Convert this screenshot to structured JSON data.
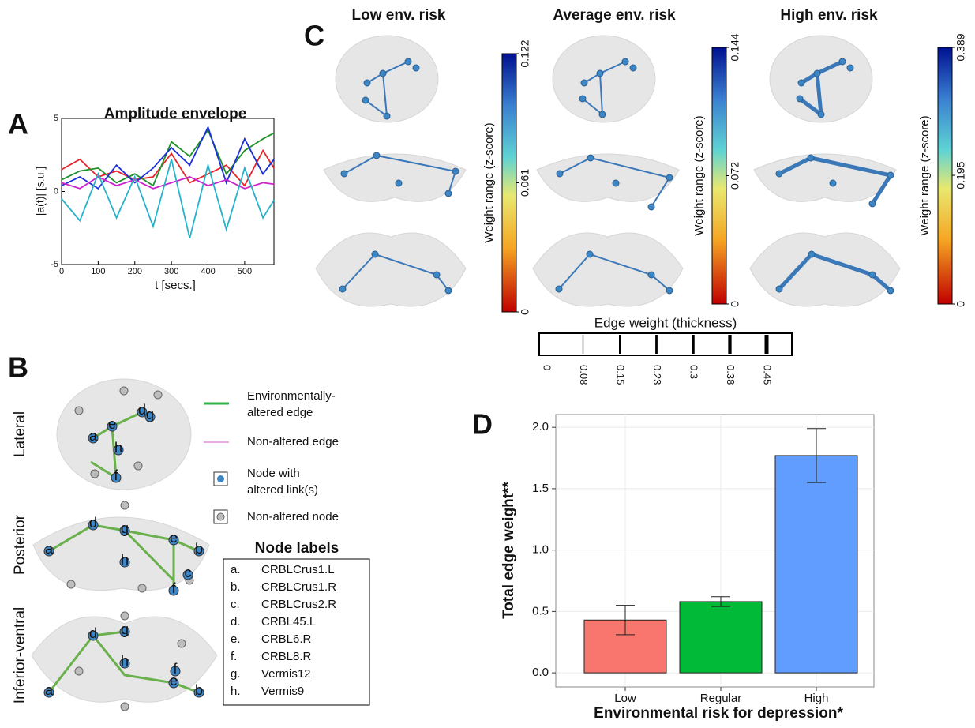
{
  "panel_labels": [
    "A",
    "B",
    "C",
    "D"
  ],
  "chart_data": [
    {
      "type": "line",
      "title": "Amplitude envelope",
      "x_label": "t [secs.]",
      "y_label": "|a(t)| [s.u.]",
      "xlim": [
        0,
        580
      ],
      "ylim": [
        -5,
        5
      ],
      "xticks": [
        0,
        100,
        200,
        300,
        400,
        500
      ],
      "yticks": [
        -5,
        0,
        5
      ],
      "x": [
        0,
        50,
        100,
        150,
        200,
        250,
        300,
        350,
        400,
        450,
        500,
        550,
        580
      ],
      "series": [
        {
          "color": "#e8242a",
          "values": [
            1.5,
            2.2,
            1.0,
            1.4,
            0.8,
            1.0,
            2.6,
            0.6,
            1.2,
            1.8,
            0.4,
            2.8,
            1.6
          ]
        },
        {
          "color": "#1f8f2a",
          "values": [
            0.8,
            1.4,
            1.6,
            0.6,
            1.2,
            0.4,
            3.4,
            2.4,
            4.2,
            1.2,
            2.8,
            3.6,
            4.0
          ]
        },
        {
          "color": "#1b2fd8",
          "values": [
            0.4,
            1.0,
            0.2,
            1.8,
            0.6,
            1.6,
            3.0,
            1.8,
            4.4,
            0.6,
            3.6,
            1.2,
            2.2
          ]
        },
        {
          "color": "#cc22cc",
          "values": [
            0.6,
            0.2,
            1.0,
            0.4,
            0.8,
            0.2,
            0.6,
            1.0,
            0.4,
            0.8,
            0.2,
            0.6,
            0.5
          ]
        },
        {
          "color": "#26b3c9",
          "values": [
            -0.5,
            -2.0,
            1.2,
            -1.8,
            1.0,
            -2.4,
            2.2,
            -3.2,
            1.8,
            -2.6,
            1.6,
            -1.8,
            -0.6
          ]
        }
      ]
    },
    {
      "type": "bar",
      "x_label": "Environmental risk for depression*",
      "y_label": "Total edge weight**",
      "categories": [
        "Low",
        "Regular",
        "High"
      ],
      "values": [
        0.43,
        0.58,
        1.77
      ],
      "errors": [
        0.12,
        0.04,
        0.22
      ],
      "colors": [
        "#f8766d",
        "#00ba38",
        "#619cff"
      ],
      "ylim": [
        -0.115,
        2.104
      ],
      "yticks": [
        {
          "value": 0,
          "label": "0.0"
        },
        {
          "value": 0.5,
          "label": "0.5"
        },
        {
          "value": 1,
          "label": "1.0"
        },
        {
          "value": 1.5,
          "label": "1.5"
        },
        {
          "value": 2,
          "label": "2.0"
        }
      ],
      "grid": true
    }
  ],
  "panel_c": {
    "titles": [
      "Low env. risk",
      "Average env. risk",
      "High env. risk"
    ],
    "colorbar_label": "Weight range (z-score)",
    "colorbar_ticks": [
      [
        0,
        0.061,
        0.122
      ],
      [
        0,
        0.072,
        0.144
      ],
      [
        0,
        0.195,
        0.389
      ]
    ],
    "edge_weight_title": "Edge weight (thickness)",
    "edge_weight_ticks": [
      0,
      0.08,
      0.15,
      0.23,
      0.3,
      0.38,
      0.45
    ]
  },
  "panel_b": {
    "views": [
      "Lateral",
      "Posterior",
      "Inferior-ventral"
    ],
    "legend": [
      [
        "Environmentally-",
        "altered edge"
      ],
      [
        "Non-altered edge"
      ],
      [
        "Node with",
        "altered link(s)"
      ],
      [
        "Non-altered node"
      ]
    ],
    "node_labels_title": "Node labels",
    "node_letters": [
      "a",
      "b",
      "c",
      "d",
      "e",
      "f",
      "g",
      "h"
    ],
    "node_labels": [
      [
        "a.",
        "CRBLCrus1.L"
      ],
      [
        "b.",
        "CRBLCrus1.R"
      ],
      [
        "c.",
        "CRBLCrus2.R"
      ],
      [
        "d.",
        "CRBL45.L"
      ],
      [
        "e.",
        "CRBL6.R"
      ],
      [
        "f.",
        "CRBL8.R"
      ],
      [
        "g.",
        "Vermis12"
      ],
      [
        "h.",
        "Vermis9"
      ]
    ]
  }
}
